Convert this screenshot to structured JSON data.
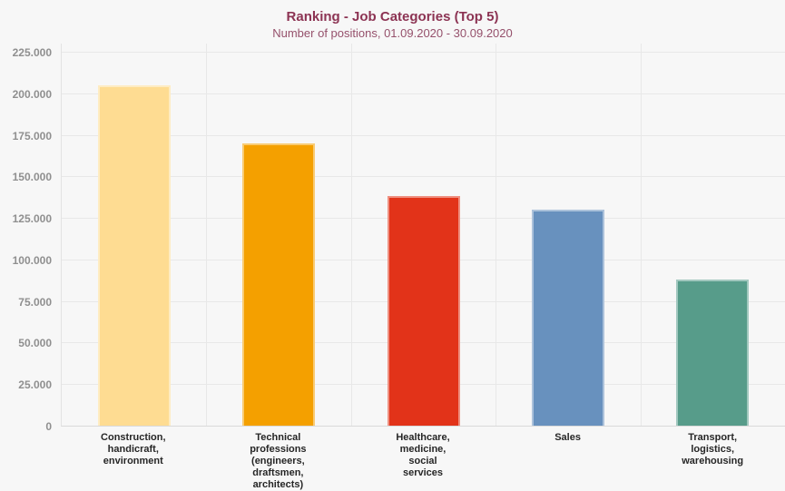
{
  "colors": {
    "title": "#8c3353",
    "subtitle": "#95506b",
    "background": "#f7f7f7",
    "gridline": "#e8e8e8",
    "axis_line": "#d9d9d9",
    "y_tick_text": "#8f8f8f",
    "category_text": "#262626"
  },
  "chart_data": {
    "type": "bar",
    "title": "Ranking - Job Categories (Top 5)",
    "subtitle": "Number of positions, 01.09.2020 - 30.09.2020",
    "categories": [
      "Construction,\nhandicraft,\nenvironment",
      "Technical\nprofessions\n(engineers,\ndraftsmen,\narchitects)",
      "Healthcare,\nmedicine,\nsocial\nservices",
      "Sales",
      "Transport,\nlogistics,\nwarehousing"
    ],
    "values": [
      205000,
      170000,
      138000,
      130000,
      88000
    ],
    "bar_colors": [
      "#fedc92",
      "#f4a000",
      "#e23319",
      "#6891be",
      "#579c8a"
    ],
    "xlabel": "",
    "ylabel": "",
    "ylim": [
      0,
      225000
    ],
    "ytick_step": 25000,
    "ytick_labels": [
      "0",
      "25.000",
      "50.000",
      "75.000",
      "100.000",
      "125.000",
      "150.000",
      "175.000",
      "200.000",
      "225.000"
    ],
    "grid": true,
    "legend": "none"
  }
}
